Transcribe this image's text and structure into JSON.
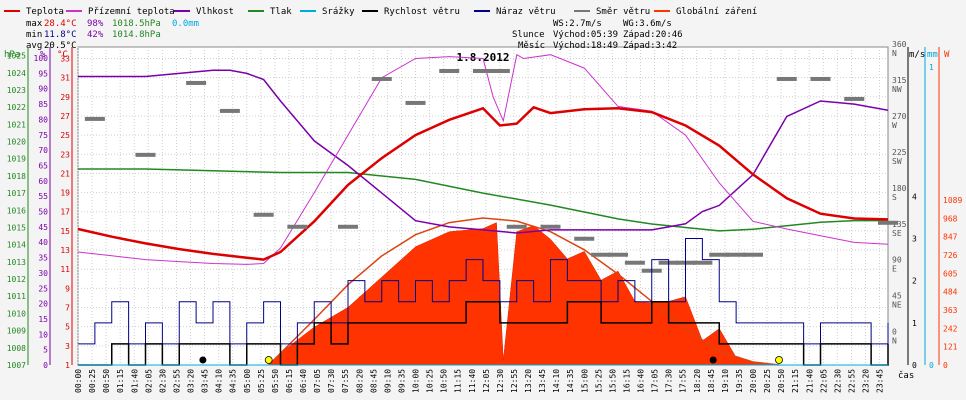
{
  "chart_data": {
    "type": "line",
    "title": "1.8.2012",
    "xlabel": "čas",
    "legend": [
      {
        "label": "Teplota",
        "color": "#dd0000"
      },
      {
        "label": "Přízemní teplota",
        "color": "#cc33cc"
      },
      {
        "label": "Vlhkost",
        "color": "#7a00aa"
      },
      {
        "label": "Tlak",
        "color": "#228822"
      },
      {
        "label": "Srážky",
        "color": "#00aadd"
      },
      {
        "label": "Rychlost větru",
        "color": "#000000"
      },
      {
        "label": "Náraz větru",
        "color": "#000088"
      },
      {
        "label": "Směr větru",
        "color": "#777777"
      },
      {
        "label": "Globální záření",
        "color": "#ff3300"
      }
    ],
    "stats": {
      "max": {
        "label": "max",
        "temp": "28.4°C",
        "hum": "98%",
        "press": "1018.5hPa",
        "rain": "0.0mm"
      },
      "min": {
        "label": "min",
        "temp": "11.8°C",
        "hum": "42%",
        "press": "1014.8hPa"
      },
      "avg": {
        "label": "avg",
        "temp": "20.5°C"
      }
    },
    "info": {
      "ws": "WS:2.7m/s",
      "wg": "WG:3.6m/s",
      "sun_label": "Slunce",
      "sun_rise": "Východ:05:39",
      "sun_set": "Západ:20:46",
      "moon_label": "Měsíc",
      "moon_rise": "Východ:18:49",
      "moon_set": "Západ:3:42"
    },
    "axes": {
      "hpa": {
        "unit": "hPa",
        "color": "#228822",
        "ticks": [
          "1007",
          "1008",
          "1009",
          "1010",
          "1011",
          "1012",
          "1013",
          "1014",
          "1015",
          "1016",
          "1017",
          "1018",
          "1019",
          "1020",
          "1021",
          "1022",
          "1023",
          "1024",
          "1025"
        ]
      },
      "pct": {
        "unit": "%",
        "color": "#7a00aa",
        "ticks": [
          "0",
          "5",
          "10",
          "15",
          "20",
          "25",
          "30",
          "35",
          "40",
          "45",
          "50",
          "55",
          "60",
          "65",
          "70",
          "75",
          "80",
          "85",
          "90",
          "95",
          "100"
        ]
      },
      "temp": {
        "unit": "°C",
        "color": "#dd0000",
        "ticks": [
          "1",
          "3",
          "5",
          "7",
          "9",
          "11",
          "13",
          "15",
          "17",
          "19",
          "21",
          "23",
          "25",
          "27",
          "29",
          "31",
          "33"
        ]
      },
      "wind": {
        "unit": "m/s",
        "color": "#000000",
        "ticks": [
          "0",
          "1",
          "2",
          "3",
          "4"
        ]
      },
      "mm": {
        "unit": "mm",
        "color": "#00aadd",
        "ticks": [
          "0",
          "1"
        ]
      },
      "dir": {
        "ticks": [
          "0 N",
          "45 NE",
          "90 E",
          "135 SE",
          "180 S",
          "225 SW",
          "270 W",
          "315 NW",
          "360 N"
        ]
      },
      "rad": {
        "unit": "W",
        "color": "#ff3300",
        "ticks": [
          "0",
          "121",
          "242",
          "363",
          "484",
          "605",
          "726",
          "847",
          "968",
          "1089"
        ]
      }
    },
    "time_labels": [
      "00:00",
      "00:25",
      "00:50",
      "01:15",
      "01:40",
      "02:05",
      "02:30",
      "02:55",
      "03:20",
      "03:45",
      "04:10",
      "04:35",
      "05:00",
      "05:25",
      "05:50",
      "06:15",
      "06:40",
      "07:05",
      "07:30",
      "07:55",
      "08:20",
      "08:45",
      "09:10",
      "09:35",
      "10:00",
      "10:25",
      "10:50",
      "11:15",
      "11:40",
      "12:05",
      "12:30",
      "12:55",
      "13:20",
      "13:45",
      "14:10",
      "14:35",
      "15:00",
      "15:25",
      "15:50",
      "16:15",
      "16:40",
      "17:05",
      "17:30",
      "17:55",
      "18:20",
      "18:45",
      "19:10",
      "19:35",
      "20:00",
      "20:25",
      "20:50",
      "21:15",
      "21:40",
      "22:05",
      "22:30",
      "22:55",
      "23:20",
      "23:45"
    ],
    "series": {
      "temperature": {
        "x_h": [
          0,
          1,
          2,
          3,
          4,
          5,
          5.5,
          6,
          7,
          8,
          9,
          10,
          11,
          12,
          12.5,
          13,
          13.5,
          14,
          15,
          16,
          17,
          18,
          19,
          20,
          21,
          22,
          23,
          24
        ],
        "y": [
          15.2,
          14.4,
          13.7,
          13.1,
          12.6,
          12.2,
          12.0,
          12.8,
          16.0,
          19.8,
          22.6,
          25.0,
          26.6,
          27.8,
          26.0,
          26.2,
          27.9,
          27.3,
          27.7,
          27.8,
          27.4,
          26.0,
          23.9,
          20.9,
          18.4,
          16.8,
          16.3,
          16.2
        ]
      },
      "ground_temperature": {
        "x_h": [
          0,
          1,
          2,
          3,
          4,
          5,
          5.5,
          6,
          7,
          8,
          9,
          10,
          11,
          12,
          12.3,
          12.6,
          13,
          13.2,
          14,
          15,
          16,
          17,
          18,
          19,
          20,
          21,
          22,
          23,
          24
        ],
        "y": [
          12.8,
          12.4,
          12.0,
          11.8,
          11.6,
          11.5,
          11.6,
          13.2,
          19.0,
          25.0,
          31.0,
          33.0,
          33.2,
          33.0,
          29.0,
          26.5,
          33.4,
          33.0,
          33.4,
          32.0,
          28.0,
          27.5,
          25.0,
          20.0,
          16.0,
          15.2,
          14.5,
          13.8,
          13.6
        ]
      },
      "humidity": {
        "x_h": [
          0,
          1,
          2,
          3,
          4,
          4.5,
          5,
          5.5,
          6,
          7,
          8,
          9,
          10,
          11,
          12,
          13,
          14,
          15,
          16,
          17,
          17.5,
          18,
          18.5,
          19,
          20,
          21,
          22,
          23,
          24
        ],
        "y": [
          94,
          94,
          94,
          95,
          96,
          96,
          95,
          93,
          86,
          73,
          65,
          56,
          47,
          45,
          44,
          43,
          44,
          44,
          44,
          44,
          45,
          46,
          50,
          52,
          62,
          81,
          86,
          85,
          83
        ]
      },
      "pressure": {
        "x_h": [
          0,
          2,
          4,
          6,
          8,
          10,
          12,
          14,
          15,
          16,
          17,
          18,
          19,
          20,
          21,
          22,
          23,
          24
        ],
        "y": [
          1018.4,
          1018.4,
          1018.3,
          1018.2,
          1018.2,
          1017.8,
          1017.0,
          1016.3,
          1015.9,
          1015.5,
          1015.2,
          1015.0,
          1014.8,
          1014.9,
          1015.1,
          1015.3,
          1015.4,
          1015.4
        ]
      },
      "wind_speed": {
        "x_h": [
          0,
          0.5,
          1,
          1.5,
          2,
          2.5,
          3,
          3.5,
          4,
          4.5,
          5,
          5.5,
          6,
          6.5,
          7,
          7.5,
          8,
          8.5,
          9,
          9.5,
          10,
          10.5,
          11,
          11.5,
          12,
          12.5,
          13,
          13.5,
          14,
          14.5,
          15,
          15.5,
          16,
          16.5,
          17,
          17.5,
          18,
          18.5,
          19,
          19.5,
          20,
          20.5,
          21,
          21.5,
          22,
          22.5,
          23,
          23.5,
          24
        ],
        "y": [
          0,
          0,
          0.5,
          0,
          0.5,
          0,
          0.5,
          0.5,
          0.5,
          0,
          0.5,
          0.5,
          0,
          0.5,
          1,
          0.5,
          1,
          1,
          1,
          1,
          1,
          1,
          1,
          1.5,
          1.5,
          1,
          1,
          1,
          1,
          1.5,
          1.5,
          1,
          1,
          1,
          1.5,
          1,
          1,
          1,
          0.5,
          0.5,
          0.5,
          0.5,
          0.5,
          0,
          0.5,
          0.5,
          0.5,
          0,
          0.5
        ]
      },
      "wind_gust": {
        "x_h": [
          0,
          0.5,
          1,
          1.5,
          2,
          2.5,
          3,
          3.5,
          4,
          4.5,
          5,
          5.5,
          6,
          6.5,
          7,
          7.5,
          8,
          8.5,
          9,
          9.5,
          10,
          10.5,
          11,
          11.5,
          12,
          12.5,
          13,
          13.5,
          14,
          14.5,
          15,
          15.5,
          16,
          16.5,
          17,
          17.5,
          18,
          18.5,
          19,
          19.5,
          20,
          20.5,
          21,
          21.5,
          22,
          22.5,
          23,
          23.5,
          24
        ],
        "y": [
          0.5,
          1,
          1.5,
          0.5,
          1,
          0.5,
          1.5,
          1,
          1.5,
          0.5,
          1,
          1.5,
          0.5,
          1,
          1.5,
          1,
          2,
          1.5,
          2,
          1.5,
          2,
          1.5,
          2,
          2.5,
          2,
          1.5,
          2,
          1.5,
          2.5,
          2,
          2,
          1.5,
          2,
          1.5,
          2.5,
          1.5,
          3,
          2.5,
          1.5,
          1,
          1,
          1,
          1,
          0.5,
          1,
          1,
          1,
          0.5,
          1
        ]
      },
      "wind_direction": {
        "x_h": [
          0.5,
          2,
          3.5,
          4.5,
          5.5,
          6.5,
          8,
          9,
          10,
          11,
          12,
          12.5,
          13,
          14,
          15,
          15.5,
          16,
          16.5,
          17,
          17.5,
          18,
          18.5,
          19,
          19.5,
          20,
          21,
          22,
          23,
          24
        ],
        "y": [
          270,
          225,
          315,
          280,
          150,
          135,
          135,
          320,
          290,
          330,
          330,
          330,
          135,
          135,
          120,
          100,
          100,
          90,
          80,
          90,
          90,
          90,
          100,
          100,
          100,
          320,
          320,
          295,
          140
        ]
      },
      "global_radiation": {
        "x_h": [
          5.65,
          6,
          7,
          8,
          9,
          10,
          11,
          12,
          12.4,
          12.6,
          13,
          13.5,
          14,
          14.5,
          15,
          15.5,
          16,
          16.5,
          17,
          17.5,
          18,
          18.5,
          19,
          19.5,
          20,
          20.77
        ],
        "y": [
          0,
          80,
          250,
          380,
          580,
          780,
          880,
          900,
          940,
          30,
          880,
          920,
          830,
          700,
          750,
          560,
          620,
          420,
          410,
          420,
          450,
          160,
          240,
          50,
          20,
          0
        ]
      },
      "clear_sky_radiation": {
        "x_h": [
          5.65,
          7,
          8,
          9,
          10,
          11,
          12,
          13,
          14,
          15,
          16,
          17,
          18,
          19,
          20,
          20.77
        ],
        "y": [
          0,
          300,
          530,
          720,
          860,
          940,
          970,
          950,
          880,
          760,
          600,
          420,
          240,
          90,
          20,
          0
        ]
      },
      "rain": {
        "x_h": [
          0,
          24
        ],
        "y": [
          0,
          0
        ]
      }
    }
  }
}
